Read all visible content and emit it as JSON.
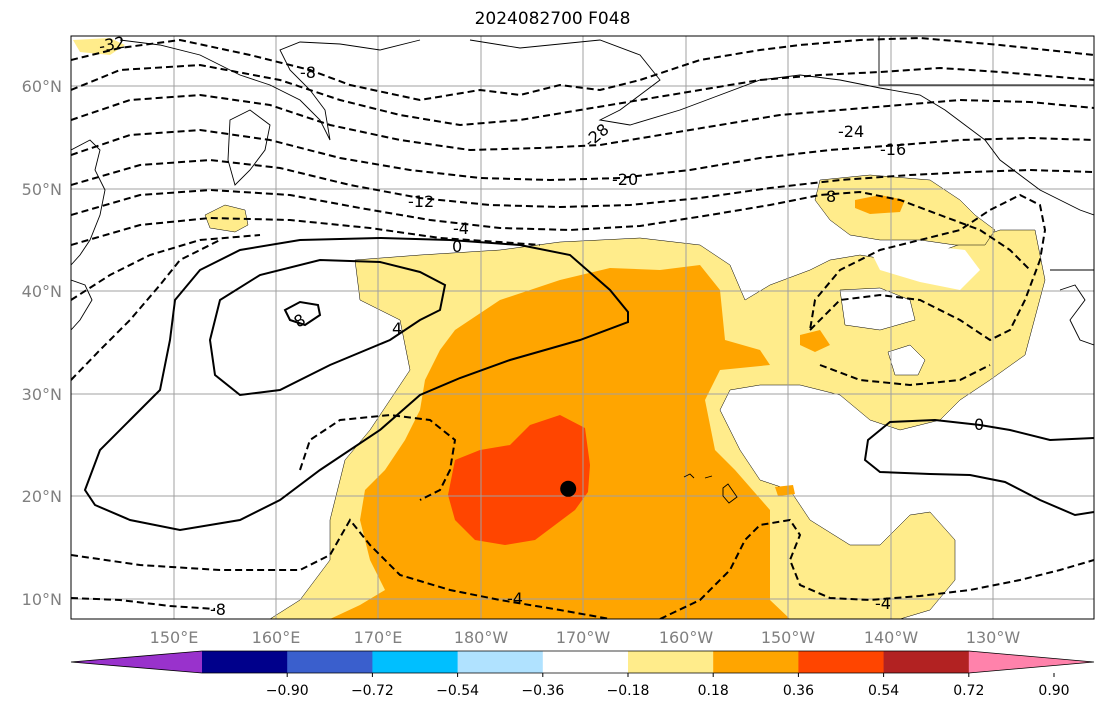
{
  "title": "2024082700 F048",
  "lat_labels": [
    "60°N",
    "50°N",
    "40°N",
    "30°N",
    "20°N",
    "10°N"
  ],
  "lon_labels": [
    "150°E",
    "160°E",
    "170°E",
    "180°W",
    "170°W",
    "160°W",
    "150°W",
    "140°W",
    "130°W"
  ],
  "colorbar": {
    "ticks": [
      "−0.90",
      "−0.72",
      "−0.54",
      "−0.36",
      "−0.18",
      "0.18",
      "0.36",
      "0.54",
      "0.72",
      "0.90"
    ],
    "colors": [
      "#9932cc",
      "#00008b",
      "#3a5fcd",
      "#00bfff",
      "#b0e2ff",
      "#ffffff",
      "#ffec8b",
      "#ffa500",
      "#ff4500",
      "#b22222",
      "#ff82ab"
    ]
  },
  "contour_labels": [
    "-32",
    "-28",
    "-24",
    "-20",
    "-16",
    "-12",
    "-8",
    "-4",
    "0",
    "4",
    "8",
    "8",
    "0",
    "-4",
    "-8",
    "-4"
  ],
  "shading_colors": {
    "light": "#ffec8b",
    "mid": "#ffa500",
    "high": "#ff4500"
  },
  "marker": {
    "lat": 20.7,
    "lon": -171.5
  }
}
